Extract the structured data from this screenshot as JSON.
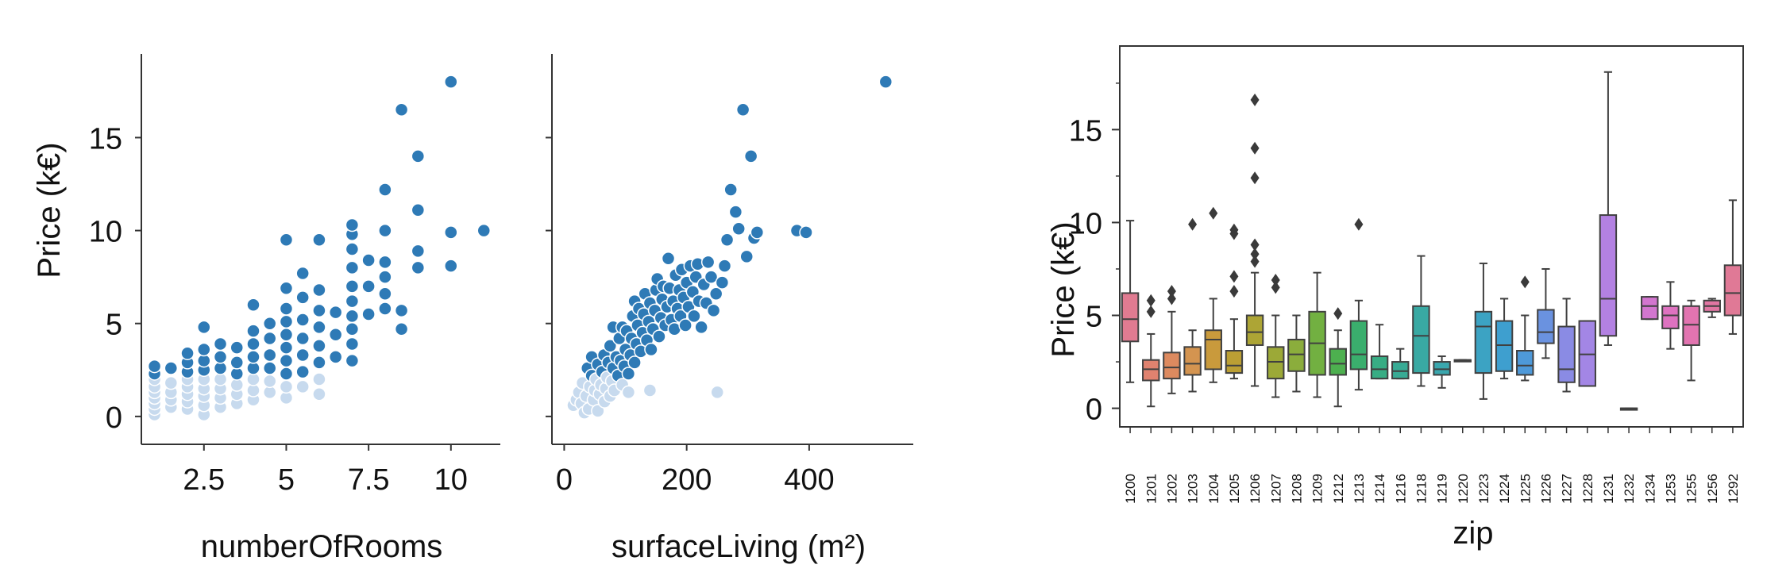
{
  "chart_data": [
    {
      "type": "scatter",
      "xlabel": "numberOfRooms",
      "ylabel": "Price (k€)",
      "xlim": [
        0.6,
        11.5
      ],
      "ylim": [
        -1.5,
        19.5
      ],
      "xticks": [
        2.5,
        5,
        7.5,
        10
      ],
      "xtick_labels": [
        "2.5",
        "5",
        "7.5",
        "10"
      ],
      "yticks": [
        0,
        5,
        10,
        15
      ],
      "ytick_labels": [
        "0",
        "5",
        "10",
        "15"
      ],
      "grid": false,
      "points": [
        [
          1,
          0.1
        ],
        [
          1,
          0.4
        ],
        [
          1,
          0.7
        ],
        [
          1,
          1.0
        ],
        [
          1,
          1.3
        ],
        [
          1,
          1.6
        ],
        [
          1,
          2.0
        ],
        [
          1,
          2.3
        ],
        [
          1,
          2.7
        ],
        [
          1.5,
          0.5
        ],
        [
          1.5,
          0.9
        ],
        [
          1.5,
          1.3
        ],
        [
          1.5,
          1.8
        ],
        [
          1.5,
          2.6
        ],
        [
          2,
          0.4
        ],
        [
          2,
          0.8
        ],
        [
          2,
          1.2
        ],
        [
          2,
          1.6
        ],
        [
          2,
          2.0
        ],
        [
          2,
          2.4
        ],
        [
          2,
          2.9
        ],
        [
          2,
          3.4
        ],
        [
          2.5,
          0.1
        ],
        [
          2.5,
          0.6
        ],
        [
          2.5,
          1.1
        ],
        [
          2.5,
          1.5
        ],
        [
          2.5,
          2.0
        ],
        [
          2.5,
          2.5
        ],
        [
          2.5,
          3.0
        ],
        [
          2.5,
          3.6
        ],
        [
          2.5,
          4.8
        ],
        [
          3,
          0.5
        ],
        [
          3,
          1.0
        ],
        [
          3,
          1.5
        ],
        [
          3,
          2.0
        ],
        [
          3,
          2.6
        ],
        [
          3,
          3.2
        ],
        [
          3,
          3.9
        ],
        [
          3.5,
          0.7
        ],
        [
          3.5,
          1.2
        ],
        [
          3.5,
          1.7
        ],
        [
          3.5,
          2.3
        ],
        [
          3.5,
          2.9
        ],
        [
          3.5,
          3.7
        ],
        [
          4,
          0.9
        ],
        [
          4,
          1.4
        ],
        [
          4,
          2.0
        ],
        [
          4,
          2.6
        ],
        [
          4,
          3.2
        ],
        [
          4,
          3.9
        ],
        [
          4,
          4.6
        ],
        [
          4,
          6.0
        ],
        [
          4.5,
          1.3
        ],
        [
          4.5,
          1.9
        ],
        [
          4.5,
          2.6
        ],
        [
          4.5,
          3.3
        ],
        [
          4.5,
          4.2
        ],
        [
          4.5,
          5.0
        ],
        [
          5,
          1.0
        ],
        [
          5,
          1.6
        ],
        [
          5,
          2.3
        ],
        [
          5,
          3.0
        ],
        [
          5,
          3.7
        ],
        [
          5,
          4.4
        ],
        [
          5,
          5.1
        ],
        [
          5,
          5.8
        ],
        [
          5,
          6.9
        ],
        [
          5,
          9.5
        ],
        [
          5.5,
          1.6
        ],
        [
          5.5,
          2.4
        ],
        [
          5.5,
          3.3
        ],
        [
          5.5,
          4.2
        ],
        [
          5.5,
          5.2
        ],
        [
          5.5,
          6.4
        ],
        [
          5.5,
          7.7
        ],
        [
          6,
          1.2
        ],
        [
          6,
          2.0
        ],
        [
          6,
          2.9
        ],
        [
          6,
          3.8
        ],
        [
          6,
          4.8
        ],
        [
          6,
          5.7
        ],
        [
          6,
          6.8
        ],
        [
          6,
          9.5
        ],
        [
          6.5,
          3.2
        ],
        [
          6.5,
          4.4
        ],
        [
          6.5,
          5.6
        ],
        [
          7,
          3.0
        ],
        [
          7,
          3.9
        ],
        [
          7,
          4.7
        ],
        [
          7,
          5.4
        ],
        [
          7,
          6.2
        ],
        [
          7,
          7.0
        ],
        [
          7,
          8.0
        ],
        [
          7,
          9.0
        ],
        [
          7,
          9.8
        ],
        [
          7,
          10.3
        ],
        [
          7.5,
          5.5
        ],
        [
          7.5,
          7.0
        ],
        [
          7.5,
          8.4
        ],
        [
          8,
          5.8
        ],
        [
          8,
          6.6
        ],
        [
          8,
          7.5
        ],
        [
          8,
          8.3
        ],
        [
          8,
          10.0
        ],
        [
          8,
          12.2
        ],
        [
          8.5,
          4.7
        ],
        [
          8.5,
          5.7
        ],
        [
          8.5,
          16.5
        ],
        [
          9,
          8.0
        ],
        [
          9,
          8.9
        ],
        [
          9,
          11.1
        ],
        [
          9,
          14.0
        ],
        [
          10,
          8.1
        ],
        [
          10,
          9.9
        ],
        [
          10,
          18.0
        ],
        [
          11,
          10.0
        ]
      ]
    },
    {
      "type": "scatter",
      "xlabel": "surfaceLiving (m²)",
      "ylabel": "",
      "xlim": [
        -20,
        570
      ],
      "ylim": [
        -1.5,
        19.5
      ],
      "xticks": [
        0,
        200,
        400
      ],
      "xtick_labels": [
        "0",
        "200",
        "400"
      ],
      "yticks": [
        0,
        5,
        10,
        15
      ],
      "grid": false,
      "points": [
        [
          15,
          0.6
        ],
        [
          20,
          0.9
        ],
        [
          24,
          1.3
        ],
        [
          28,
          0.7
        ],
        [
          30,
          1.8
        ],
        [
          33,
          0.2
        ],
        [
          36,
          1.1
        ],
        [
          38,
          2.6
        ],
        [
          40,
          0.4
        ],
        [
          42,
          1.6
        ],
        [
          45,
          2.2
        ],
        [
          45,
          3.2
        ],
        [
          48,
          0.9
        ],
        [
          50,
          1.4
        ],
        [
          52,
          2.0
        ],
        [
          55,
          2.8
        ],
        [
          55,
          0.3
        ],
        [
          58,
          1.2
        ],
        [
          60,
          1.7
        ],
        [
          62,
          2.4
        ],
        [
          65,
          3.3
        ],
        [
          66,
          0.8
        ],
        [
          68,
          1.5
        ],
        [
          70,
          2.1
        ],
        [
          72,
          2.9
        ],
        [
          75,
          3.8
        ],
        [
          75,
          1.1
        ],
        [
          78,
          1.9
        ],
        [
          80,
          4.8
        ],
        [
          80,
          2.6
        ],
        [
          82,
          1.4
        ],
        [
          85,
          3.2
        ],
        [
          88,
          2.2
        ],
        [
          90,
          4.2
        ],
        [
          92,
          3.0
        ],
        [
          95,
          1.7
        ],
        [
          95,
          4.8
        ],
        [
          98,
          2.7
        ],
        [
          100,
          3.6
        ],
        [
          102,
          4.6
        ],
        [
          105,
          1.3
        ],
        [
          105,
          2.3
        ],
        [
          108,
          3.3
        ],
        [
          110,
          4.2
        ],
        [
          112,
          5.4
        ],
        [
          115,
          2.9
        ],
        [
          115,
          6.2
        ],
        [
          118,
          3.9
        ],
        [
          120,
          4.9
        ],
        [
          122,
          5.8
        ],
        [
          125,
          3.5
        ],
        [
          128,
          4.5
        ],
        [
          130,
          5.5
        ],
        [
          132,
          6.6
        ],
        [
          135,
          4.1
        ],
        [
          138,
          5.1
        ],
        [
          140,
          6.1
        ],
        [
          140,
          1.4
        ],
        [
          142,
          3.6
        ],
        [
          145,
          4.7
        ],
        [
          148,
          5.7
        ],
        [
          150,
          6.8
        ],
        [
          152,
          7.4
        ],
        [
          155,
          4.3
        ],
        [
          158,
          5.3
        ],
        [
          160,
          6.3
        ],
        [
          162,
          7.0
        ],
        [
          165,
          4.9
        ],
        [
          168,
          5.9
        ],
        [
          170,
          8.5
        ],
        [
          172,
          6.9
        ],
        [
          175,
          5.2
        ],
        [
          178,
          6.2
        ],
        [
          180,
          4.7
        ],
        [
          182,
          7.6
        ],
        [
          185,
          5.8
        ],
        [
          188,
          6.8
        ],
        [
          190,
          5.4
        ],
        [
          192,
          7.9
        ],
        [
          195,
          6.4
        ],
        [
          198,
          4.9
        ],
        [
          200,
          7.2
        ],
        [
          203,
          5.9
        ],
        [
          206,
          8.1
        ],
        [
          210,
          6.7
        ],
        [
          212,
          5.4
        ],
        [
          215,
          7.5
        ],
        [
          218,
          8.2
        ],
        [
          220,
          6.2
        ],
        [
          224,
          4.8
        ],
        [
          228,
          7.1
        ],
        [
          232,
          6.1
        ],
        [
          235,
          8.3
        ],
        [
          240,
          7.5
        ],
        [
          244,
          5.7
        ],
        [
          248,
          6.6
        ],
        [
          250,
          1.3
        ],
        [
          258,
          7.2
        ],
        [
          262,
          8.1
        ],
        [
          266,
          9.5
        ],
        [
          272,
          12.2
        ],
        [
          280,
          11.0
        ],
        [
          285,
          10.1
        ],
        [
          292,
          16.5
        ],
        [
          298,
          8.6
        ],
        [
          305,
          14.0
        ],
        [
          310,
          9.6
        ],
        [
          315,
          9.9
        ],
        [
          380,
          10.0
        ],
        [
          395,
          9.9
        ],
        [
          525,
          18.0
        ]
      ]
    },
    {
      "type": "box",
      "xlabel": "zip",
      "ylabel": "Price (k€)",
      "ylim": [
        -1.0,
        19.5
      ],
      "yticks": [
        0,
        5,
        10,
        15
      ],
      "ytick_labels": [
        "0",
        "5",
        "10",
        "15"
      ],
      "grid": false,
      "categories": [
        "1200",
        "1201",
        "1202",
        "1203",
        "1204",
        "1205",
        "1206",
        "1207",
        "1208",
        "1209",
        "1212",
        "1213",
        "1214",
        "1216",
        "1218",
        "1219",
        "1220",
        "1223",
        "1224",
        "1225",
        "1226",
        "1227",
        "1228",
        "1231",
        "1232",
        "1234",
        "1253",
        "1255",
        "1256",
        "1292"
      ],
      "boxes": [
        {
          "min": 1.4,
          "q1": 3.6,
          "median": 4.8,
          "q3": 6.2,
          "max": 10.1,
          "outliers": [],
          "color": "#e07b91"
        },
        {
          "min": 0.1,
          "q1": 1.5,
          "median": 2.1,
          "q3": 2.6,
          "max": 4.0,
          "outliers": [
            5.2,
            5.8
          ],
          "color": "#e0826f"
        },
        {
          "min": 0.8,
          "q1": 1.6,
          "median": 2.2,
          "q3": 3.0,
          "max": 5.2,
          "outliers": [
            5.9,
            6.3
          ],
          "color": "#dd8a5f"
        },
        {
          "min": 0.9,
          "q1": 1.8,
          "median": 2.4,
          "q3": 3.3,
          "max": 4.2,
          "outliers": [
            9.9
          ],
          "color": "#d49450"
        },
        {
          "min": 1.4,
          "q1": 2.1,
          "median": 3.7,
          "q3": 4.2,
          "max": 5.9,
          "outliers": [
            10.5
          ],
          "color": "#c99a3c"
        },
        {
          "min": 1.6,
          "q1": 1.9,
          "median": 2.3,
          "q3": 3.1,
          "max": 4.8,
          "outliers": [
            6.3,
            7.1,
            9.4,
            9.6
          ],
          "color": "#bb9f34"
        },
        {
          "min": 1.2,
          "q1": 3.4,
          "median": 4.1,
          "q3": 5.0,
          "max": 7.3,
          "outliers": [
            7.9,
            8.3,
            8.8,
            12.4,
            14.0,
            16.6
          ],
          "color": "#ada535"
        },
        {
          "min": 0.6,
          "q1": 1.6,
          "median": 2.5,
          "q3": 3.3,
          "max": 5.0,
          "outliers": [
            6.5,
            6.9
          ],
          "color": "#9ca937"
        },
        {
          "min": 0.9,
          "q1": 2.0,
          "median": 2.9,
          "q3": 3.7,
          "max": 5.0,
          "outliers": [],
          "color": "#8bad3c"
        },
        {
          "min": 0.6,
          "q1": 1.8,
          "median": 3.5,
          "q3": 5.2,
          "max": 7.3,
          "outliers": [],
          "color": "#72b041"
        },
        {
          "min": 0.1,
          "q1": 1.8,
          "median": 2.4,
          "q3": 3.2,
          "max": 4.2,
          "outliers": [
            5.1
          ],
          "color": "#4db04f"
        },
        {
          "min": 1.0,
          "q1": 2.1,
          "median": 2.9,
          "q3": 4.7,
          "max": 5.8,
          "outliers": [
            9.9
          ],
          "color": "#3aae6d"
        },
        {
          "min": 1.6,
          "q1": 1.6,
          "median": 2.1,
          "q3": 2.8,
          "max": 4.5,
          "outliers": [],
          "color": "#38ad84"
        },
        {
          "min": 1.6,
          "q1": 1.6,
          "median": 2.0,
          "q3": 2.5,
          "max": 3.2,
          "outliers": [],
          "color": "#38ab95"
        },
        {
          "min": 1.2,
          "q1": 1.9,
          "median": 3.9,
          "q3": 5.5,
          "max": 8.2,
          "outliers": [],
          "color": "#39a9a3"
        },
        {
          "min": 1.1,
          "q1": 1.8,
          "median": 2.1,
          "q3": 2.5,
          "max": 2.8,
          "outliers": [],
          "color": "#3aa7ae"
        },
        {
          "min": 2.6,
          "q1": 2.6,
          "median": 2.6,
          "q3": 2.6,
          "max": 2.6,
          "outliers": [],
          "color": "#3ba5b8"
        },
        {
          "min": 0.5,
          "q1": 1.9,
          "median": 4.4,
          "q3": 5.2,
          "max": 7.8,
          "outliers": [],
          "color": "#3ca3c3"
        },
        {
          "min": 1.6,
          "q1": 2.0,
          "median": 3.4,
          "q3": 4.7,
          "max": 5.9,
          "outliers": [],
          "color": "#3e9fcf"
        },
        {
          "min": 1.5,
          "q1": 1.8,
          "median": 2.3,
          "q3": 3.1,
          "max": 5.0,
          "outliers": [
            6.8
          ],
          "color": "#4e99d9"
        },
        {
          "min": 2.7,
          "q1": 3.5,
          "median": 4.1,
          "q3": 5.3,
          "max": 7.5,
          "outliers": [],
          "color": "#6a92e0"
        },
        {
          "min": 0.9,
          "q1": 1.4,
          "median": 2.1,
          "q3": 4.4,
          "max": 5.9,
          "outliers": [],
          "color": "#8a8be4"
        },
        {
          "min": 1.2,
          "q1": 1.2,
          "median": 2.9,
          "q3": 4.7,
          "max": 4.7,
          "outliers": [],
          "color": "#a386e5"
        },
        {
          "min": 3.4,
          "q1": 3.9,
          "median": 5.9,
          "q3": 10.4,
          "max": 18.1,
          "outliers": [],
          "color": "#b381e2"
        },
        {
          "min": 0.0,
          "q1": 0.0,
          "median": 0.0,
          "q3": 0.0,
          "max": 0.0,
          "outliers": [],
          "color": "#c57bd9"
        },
        {
          "min": 4.8,
          "q1": 4.8,
          "median": 5.5,
          "q3": 6.0,
          "max": 6.0,
          "outliers": [],
          "color": "#d276cf"
        },
        {
          "min": 3.2,
          "q1": 4.3,
          "median": 5.0,
          "q3": 5.5,
          "max": 6.8,
          "outliers": [],
          "color": "#de72c0"
        },
        {
          "min": 1.5,
          "q1": 3.4,
          "median": 4.5,
          "q3": 5.5,
          "max": 5.8,
          "outliers": [],
          "color": "#e274b0"
        },
        {
          "min": 4.9,
          "q1": 5.2,
          "median": 5.5,
          "q3": 5.8,
          "max": 5.9,
          "outliers": [],
          "color": "#e176a3"
        },
        {
          "min": 4.0,
          "q1": 5.0,
          "median": 6.2,
          "q3": 7.7,
          "max": 11.2,
          "outliers": [],
          "color": "#e07996"
        }
      ]
    }
  ],
  "colors": {
    "scatter_point": "#2e7ab6",
    "scatter_light": "#c7daee",
    "axis": "#333333",
    "box_line": "#404040"
  }
}
